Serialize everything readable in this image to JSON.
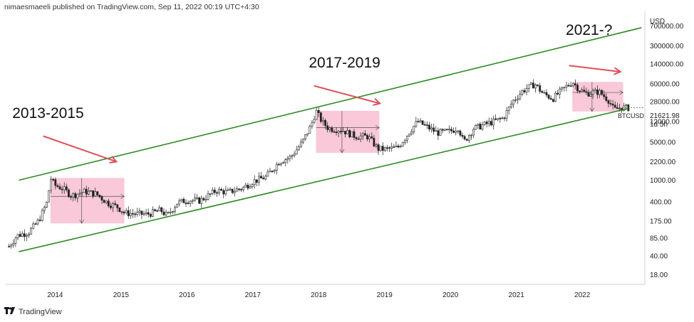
{
  "header": {
    "published": "nimaesmaeeli published on TradingView.com, Sep 11, 2022 00:19 UTC+4:30"
  },
  "footer": {
    "brand": "TradingView",
    "logo": "tradingview-logo-icon"
  },
  "chart_data": {
    "type": "candlestick",
    "symbol": "BTCUSD",
    "currency": "USD",
    "y_scale": "log",
    "ylim": [
      12,
      1300000
    ],
    "xlim": [
      2013.25,
      2022.95
    ],
    "y_ticks": [
      "700000.00",
      "300000.00",
      "140000.00",
      "60000.00",
      "28000.00",
      "12000.00",
      "5000.00",
      "2200.00",
      "1000.00",
      "400.00",
      "175.00",
      "85.00",
      "40.00",
      "18.00"
    ],
    "y_tick_values": [
      700000,
      300000,
      140000,
      60000,
      28000,
      12000,
      5000,
      2200,
      1000,
      400,
      175,
      85,
      40,
      18
    ],
    "x_ticks": [
      "2014",
      "2015",
      "2016",
      "2017",
      "2018",
      "2019",
      "2020",
      "2021",
      "2022"
    ],
    "last_price": {
      "label": "21621.98",
      "sublabel": "1d 5h",
      "value": 21621.98
    },
    "series_points": [
      [
        2013.3,
        60
      ],
      [
        2013.42,
        95
      ],
      [
        2013.6,
        110
      ],
      [
        2013.75,
        180
      ],
      [
        2013.88,
        400
      ],
      [
        2013.93,
        1100
      ],
      [
        2014.0,
        800
      ],
      [
        2014.12,
        700
      ],
      [
        2014.25,
        520
      ],
      [
        2014.45,
        620
      ],
      [
        2014.62,
        560
      ],
      [
        2014.8,
        380
      ],
      [
        2014.95,
        320
      ],
      [
        2015.05,
        250
      ],
      [
        2015.2,
        240
      ],
      [
        2015.4,
        235
      ],
      [
        2015.6,
        280
      ],
      [
        2015.7,
        220
      ],
      [
        2015.85,
        380
      ],
      [
        2016.0,
        430
      ],
      [
        2016.2,
        420
      ],
      [
        2016.45,
        650
      ],
      [
        2016.62,
        600
      ],
      [
        2016.85,
        720
      ],
      [
        2017.0,
        950
      ],
      [
        2017.2,
        1150
      ],
      [
        2017.4,
        2200
      ],
      [
        2017.58,
        2700
      ],
      [
        2017.75,
        5000
      ],
      [
        2017.88,
        10000
      ],
      [
        2017.96,
        19000
      ],
      [
        2018.05,
        12000
      ],
      [
        2018.15,
        9000
      ],
      [
        2018.35,
        8500
      ],
      [
        2018.55,
        6500
      ],
      [
        2018.75,
        6400
      ],
      [
        2018.9,
        3800
      ],
      [
        2019.0,
        3700
      ],
      [
        2019.2,
        4000
      ],
      [
        2019.4,
        8500
      ],
      [
        2019.5,
        12000
      ],
      [
        2019.62,
        10000
      ],
      [
        2019.8,
        7500
      ],
      [
        2020.0,
        8000
      ],
      [
        2020.12,
        9500
      ],
      [
        2020.2,
        5000
      ],
      [
        2020.35,
        9000
      ],
      [
        2020.6,
        11500
      ],
      [
        2020.8,
        14000
      ],
      [
        2020.95,
        29000
      ],
      [
        2021.1,
        45000
      ],
      [
        2021.28,
        60000
      ],
      [
        2021.4,
        40000
      ],
      [
        2021.55,
        32000
      ],
      [
        2021.7,
        47000
      ],
      [
        2021.85,
        65000
      ],
      [
        2021.95,
        48000
      ],
      [
        2022.05,
        40000
      ],
      [
        2022.25,
        43000
      ],
      [
        2022.4,
        30000
      ],
      [
        2022.48,
        20000
      ],
      [
        2022.6,
        22000
      ],
      [
        2022.7,
        21622
      ]
    ],
    "channel": {
      "upper": [
        [
          2013.45,
          1000
        ],
        [
          2022.9,
          650000
        ]
      ],
      "lower": [
        [
          2013.45,
          48
        ],
        [
          2022.7,
          21000
        ]
      ],
      "color": "#2e8b22"
    },
    "zones": [
      {
        "from": [
          2013.93,
          1100
        ],
        "to": [
          2015.05,
          160
        ],
        "color": "#f7b6cc"
      },
      {
        "from": [
          2017.96,
          19000
        ],
        "to": [
          2018.92,
          3200
        ],
        "color": "#f7b6cc"
      },
      {
        "from": [
          2021.85,
          65000
        ],
        "to": [
          2022.62,
          18500
        ],
        "color": "#f7b6cc"
      }
    ],
    "arrows": [
      {
        "from": [
          2013.82,
          6500
        ],
        "to": [
          2014.93,
          2200
        ],
        "color": "#e0505a"
      },
      {
        "from": [
          2017.93,
          55000
        ],
        "to": [
          2018.93,
          26000
        ],
        "color": "#e0505a"
      },
      {
        "from": [
          2021.8,
          130000
        ],
        "to": [
          2022.58,
          100000
        ],
        "color": "#e0505a"
      }
    ],
    "annotations": [
      {
        "text": "2013-2015",
        "at": [
          2013.35,
          14000
        ]
      },
      {
        "text": "2017-2019",
        "at": [
          2017.85,
          120000
        ]
      },
      {
        "text": "2021-?",
        "at": [
          2021.75,
          480000
        ]
      }
    ]
  }
}
